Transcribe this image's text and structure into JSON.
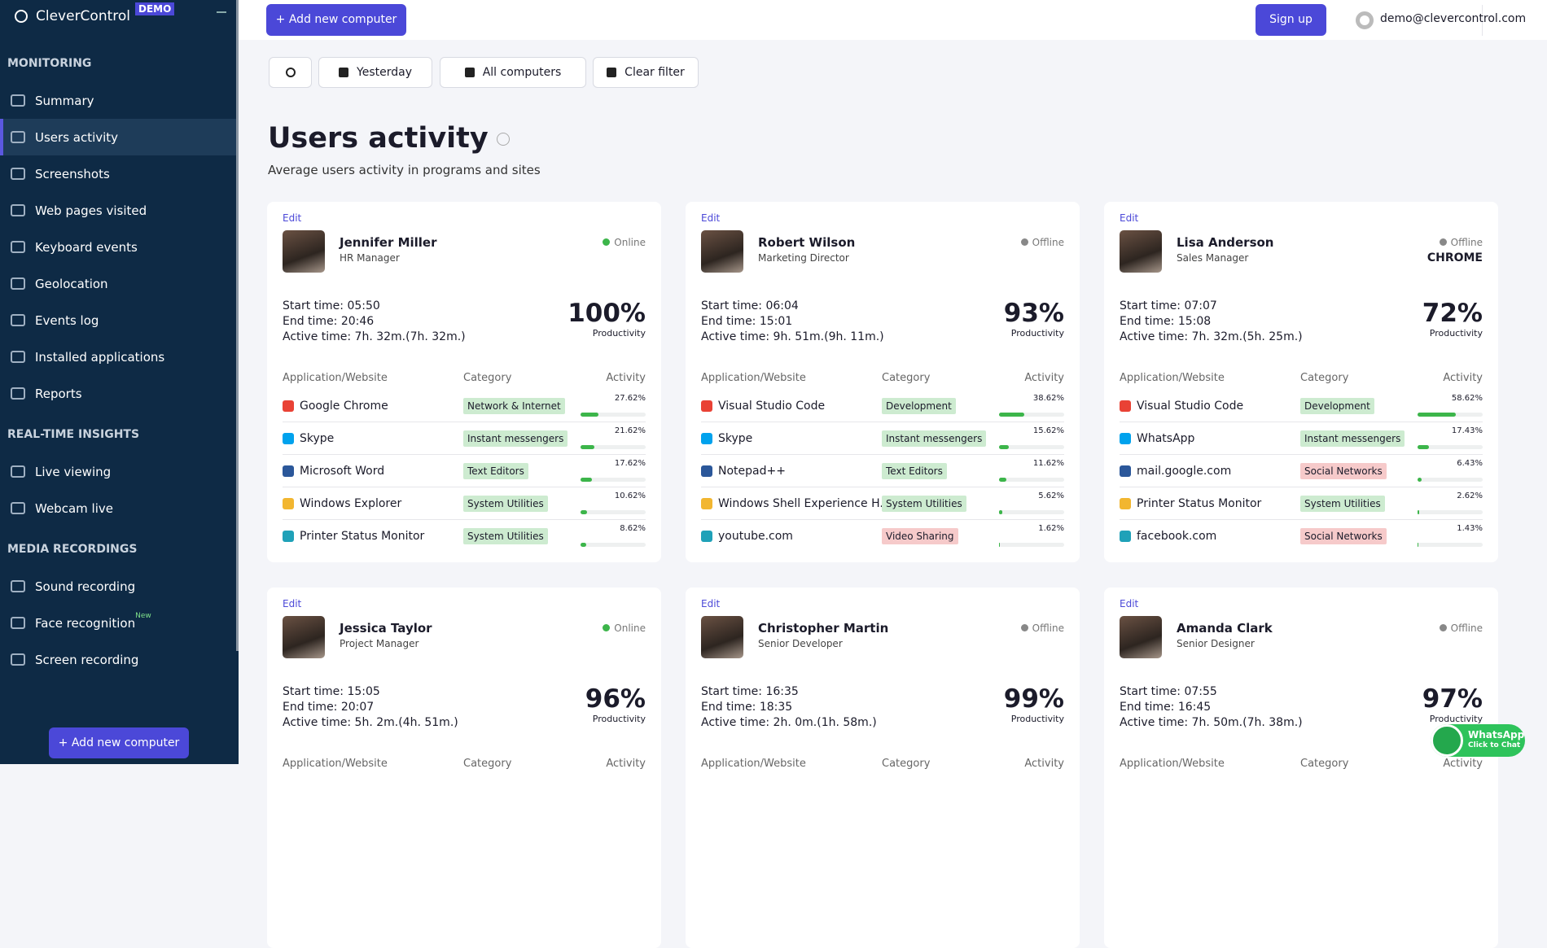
{
  "sidebar": {
    "brand": "CleverControl",
    "badge": "DEMO",
    "active": "Users activity",
    "sections": [
      {
        "title": "MONITORING",
        "items": [
          {
            "label": "Summary"
          },
          {
            "label": "Users activity"
          },
          {
            "label": "Screenshots"
          },
          {
            "label": "Web pages visited"
          },
          {
            "label": "Keyboard events"
          },
          {
            "label": "Geolocation"
          },
          {
            "label": "Events log"
          },
          {
            "label": "Installed applications"
          },
          {
            "label": "Reports"
          }
        ]
      },
      {
        "title": "REAL-TIME INSIGHTS",
        "items": [
          {
            "label": "Live viewing"
          },
          {
            "label": "Webcam live"
          }
        ]
      },
      {
        "title": "MEDIA RECORDINGS",
        "items": [
          {
            "label": "Sound recording"
          },
          {
            "label": "Face recognition",
            "badge": "New"
          },
          {
            "label": "Screen recording"
          }
        ]
      }
    ],
    "button": "+ Add new computer"
  },
  "topbar": {
    "add_button": "+ Add new computer",
    "signup": "Sign up",
    "email": "demo@clevercontrol.com"
  },
  "toolbar": {
    "date": "Yesterday",
    "computers": "All computers",
    "clear": "Clear filter"
  },
  "page": {
    "title": "Users activity",
    "subtitle": "Average users activity in programs and sites"
  },
  "table_headers": [
    "Application/Website",
    "Category",
    "Activity"
  ],
  "edit": "Edit",
  "productivity_label": "Productivity",
  "cards": [
    {
      "name": "Jennifer Miller",
      "role": "HR Manager",
      "status": "Online",
      "status_color": "#3cb54a",
      "start": "Start time: 05:50",
      "end": "End time: 20:46",
      "active": "Active time: 7h. 32m.(7h. 32m.)",
      "productivity": "100%",
      "apps": [
        {
          "name": "Google Chrome",
          "category": "Network & Internet",
          "category_color": "#cdebd0",
          "activity": 27.62,
          "activity_label": "27.62%"
        },
        {
          "name": "Skype",
          "category": "Instant messengers",
          "category_color": "#cdebd0",
          "activity": 21.62,
          "activity_label": "21.62%"
        },
        {
          "name": "Microsoft Word",
          "category": "Text Editors",
          "category_color": "#cdebd0",
          "activity": 17.62,
          "activity_label": "17.62%"
        },
        {
          "name": "Windows Explorer",
          "category": "System Utilities",
          "category_color": "#cdebd0",
          "activity": 10.62,
          "activity_label": "10.62%"
        },
        {
          "name": "Printer Status Monitor",
          "category": "System Utilities",
          "category_color": "#cdebd0",
          "activity": 8.62,
          "activity_label": "8.62%"
        }
      ]
    },
    {
      "name": "Robert Wilson",
      "role": "Marketing Director",
      "status": "Offline",
      "status_color": "#888888",
      "start": "Start time: 06:04",
      "end": "End time: 15:01",
      "active": "Active time: 9h. 51m.(9h. 11m.)",
      "productivity": "93%",
      "apps": [
        {
          "name": "Visual Studio Code",
          "category": "Development",
          "category_color": "#cdebd0",
          "activity": 38.62,
          "activity_label": "38.62%"
        },
        {
          "name": "Skype",
          "category": "Instant messengers",
          "category_color": "#cdebd0",
          "activity": 15.62,
          "activity_label": "15.62%"
        },
        {
          "name": "Notepad++",
          "category": "Text Editors",
          "category_color": "#cdebd0",
          "activity": 11.62,
          "activity_label": "11.62%"
        },
        {
          "name": "Windows Shell Experience H...",
          "category": "System Utilities",
          "category_color": "#cdebd0",
          "activity": 5.62,
          "activity_label": "5.62%"
        },
        {
          "name": "youtube.com",
          "category": "Video Sharing",
          "category_color": "#f6caca",
          "activity": 1.62,
          "activity_label": "1.62%"
        }
      ]
    },
    {
      "name": "Lisa Anderson",
      "role": "Sales Manager",
      "status": "Offline",
      "status_color": "#888888",
      "current_app": "CHROME",
      "start": "Start time: 07:07",
      "end": "End time: 15:08",
      "active": "Active time: 7h. 32m.(5h. 25m.)",
      "productivity": "72%",
      "apps": [
        {
          "name": "Visual Studio Code",
          "category": "Development",
          "category_color": "#cdebd0",
          "activity": 58.62,
          "activity_label": "58.62%"
        },
        {
          "name": "WhatsApp",
          "category": "Instant messengers",
          "category_color": "#cdebd0",
          "activity": 17.43,
          "activity_label": "17.43%"
        },
        {
          "name": "mail.google.com",
          "category": "Social Networks",
          "category_color": "#f6caca",
          "activity": 6.43,
          "activity_label": "6.43%"
        },
        {
          "name": "Printer Status Monitor",
          "category": "System Utilities",
          "category_color": "#cdebd0",
          "activity": 2.62,
          "activity_label": "2.62%"
        },
        {
          "name": "facebook.com",
          "category": "Social Networks",
          "category_color": "#f6caca",
          "activity": 1.43,
          "activity_label": "1.43%"
        }
      ]
    },
    {
      "name": "Jessica Taylor",
      "role": "Project Manager",
      "status": "Online",
      "status_color": "#3cb54a",
      "start": "Start time: 15:05",
      "end": "End time: 20:07",
      "active": "Active time: 5h. 2m.(4h. 51m.)",
      "productivity": "96%",
      "apps": []
    },
    {
      "name": "Christopher Martin",
      "role": "Senior Developer",
      "status": "Offline",
      "status_color": "#888888",
      "start": "Start time: 16:35",
      "end": "End time: 18:35",
      "active": "Active time: 2h. 0m.(1h. 58m.)",
      "productivity": "99%",
      "apps": []
    },
    {
      "name": "Amanda Clark",
      "role": "Senior Designer",
      "status": "Offline",
      "status_color": "#888888",
      "start": "Start time: 07:55",
      "end": "End time: 16:45",
      "active": "Active time: 7h. 50m.(7h. 38m.)",
      "productivity": "97%",
      "apps": []
    }
  ],
  "whatsapp": {
    "title": "WhatsApp",
    "subtitle": "Click to Chat"
  }
}
